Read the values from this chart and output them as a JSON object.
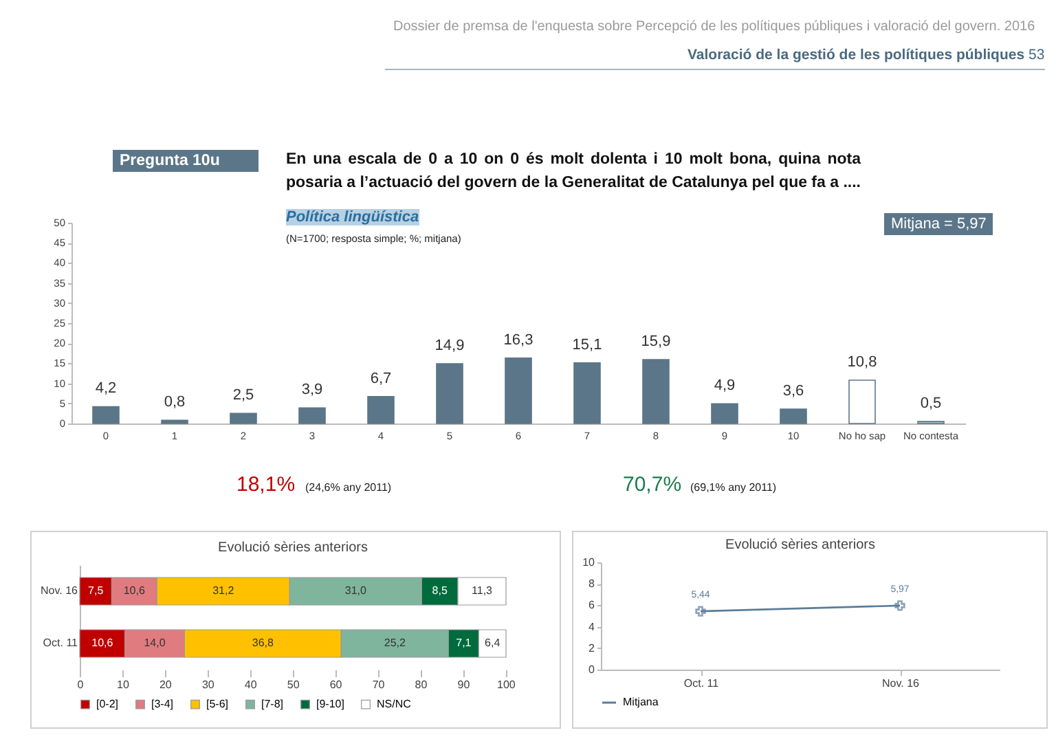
{
  "chart_data": [
    {
      "type": "bar",
      "title": "En una escala de 0 a 10 on 0 és molt dolenta i 10 molt bona, quina nota posaria a l’actuació del govern de la Generalitat de Catalunya pel que fa a ....",
      "subtitle": "Política lingüística",
      "annotations": [
        "Dossier de premsa de l'enquesta sobre Percepció de les polítiques públiques i valoració del govern. 2016",
        "Valoració de la gestió de les polítiques públiques",
        "53",
        "Pregunta 10u",
        "(N=1700; resposta simple; %; mitjana)",
        "Mitjana = 5,97",
        "18,1%",
        "(24,6% any 2011)",
        "70,7%",
        "(69,1% any 2011)"
      ],
      "categories": [
        "0",
        "1",
        "2",
        "3",
        "4",
        "5",
        "6",
        "7",
        "8",
        "9",
        "10",
        "No ho sap",
        "No contesta"
      ],
      "values": [
        4.2,
        0.8,
        2.5,
        3.9,
        6.7,
        14.9,
        16.3,
        15.1,
        15.9,
        4.9,
        3.6,
        10.8,
        0.5
      ],
      "value_labels": [
        "4,2",
        "0,8",
        "2,5",
        "3,9",
        "6,7",
        "14,9",
        "16,3",
        "15,1",
        "15,9",
        "4,9",
        "3,6",
        "10,8",
        "0,5"
      ],
      "colors": [
        "#5b7689",
        "#5b7689",
        "#5b7689",
        "#5b7689",
        "#5b7689",
        "#5b7689",
        "#5b7689",
        "#5b7689",
        "#5b7689",
        "#5b7689",
        "#5b7689",
        "#ffffff",
        "#aebdc8"
      ],
      "ylim": [
        0,
        50
      ],
      "yticks": [
        0,
        5,
        10,
        15,
        20,
        25,
        30,
        35,
        40,
        45,
        50
      ],
      "grid": false
    },
    {
      "type": "bar",
      "title": "Evolució sèries anteriors",
      "orientation": "horizontal",
      "stacked": true,
      "categories": [
        "Nov. 16",
        "Oct. 11"
      ],
      "series": [
        {
          "name": "[0-2]",
          "color": "#c00000",
          "values": [
            7.5,
            10.6
          ],
          "value_labels": [
            "7,5",
            "10,6"
          ]
        },
        {
          "name": "[3-4]",
          "color": "#e07b7f",
          "values": [
            10.6,
            14.0
          ],
          "value_labels": [
            "10,6",
            "14,0"
          ]
        },
        {
          "name": "[5-6]",
          "color": "#ffc000",
          "values": [
            31.2,
            36.8
          ],
          "value_labels": [
            "31,2",
            "36,8"
          ]
        },
        {
          "name": "[7-8]",
          "color": "#7fb59d",
          "values": [
            31.0,
            25.2
          ],
          "value_labels": [
            "31,0",
            "25,2"
          ]
        },
        {
          "name": "[9-10]",
          "color": "#006b3c",
          "values": [
            8.5,
            7.1
          ],
          "value_labels": [
            "8,5",
            "7,1"
          ]
        },
        {
          "name": "NS/NC",
          "color": "#ffffff",
          "values": [
            11.3,
            6.4
          ],
          "value_labels": [
            "11,3",
            "6,4"
          ]
        }
      ],
      "xlim": [
        0,
        100.1
      ],
      "xticks": [
        0,
        10,
        20,
        30,
        40,
        50,
        60,
        70,
        80,
        90,
        100
      ],
      "grid": false,
      "legend": "bottom"
    },
    {
      "type": "line",
      "title": "Evolució sèries anteriors",
      "categories": [
        "Oct. 11",
        "Nov. 16"
      ],
      "series": [
        {
          "name": "Mitjana",
          "color": "#5a7c99",
          "values": [
            5.44,
            5.97
          ],
          "value_labels": [
            "5,44",
            "5,97"
          ]
        }
      ],
      "ylim": [
        0,
        10
      ],
      "yticks": [
        0,
        2,
        4,
        6,
        8,
        10
      ],
      "grid": false,
      "legend": "bottom",
      "marker": "cross"
    }
  ]
}
